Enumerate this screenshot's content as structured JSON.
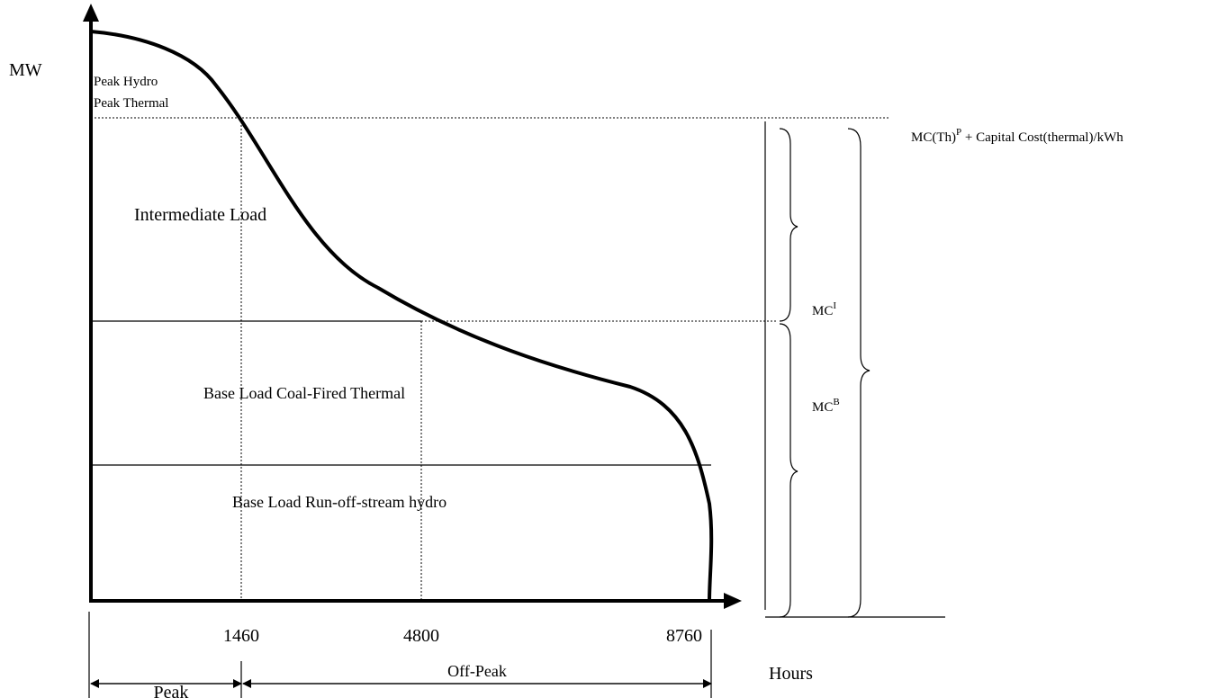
{
  "axes": {
    "y_label": "MW",
    "x_label": "Hours"
  },
  "regions": {
    "peak_hydro": "Peak Hydro",
    "peak_thermal": "Peak Thermal",
    "intermediate": "Intermediate Load",
    "base_coal": "Base Load Coal-Fired Thermal",
    "base_hydro": "Base Load Run-off-stream hydro"
  },
  "ticks": {
    "t1": "1460",
    "t2": "4800",
    "t3": "8760"
  },
  "periods": {
    "peak": "Peak",
    "off_peak": "Off-Peak"
  },
  "costs": {
    "mc_th_base": "MC(Th)",
    "mc_th_sup": "P",
    "mc_th_rest": " + Capital Cost(thermal)/kWh",
    "mci_base": "MC",
    "mci_sup": "I",
    "mcb_base": "MC",
    "mcb_sup": "B"
  },
  "colors": {
    "line": "#000000",
    "background": "#ffffff"
  }
}
